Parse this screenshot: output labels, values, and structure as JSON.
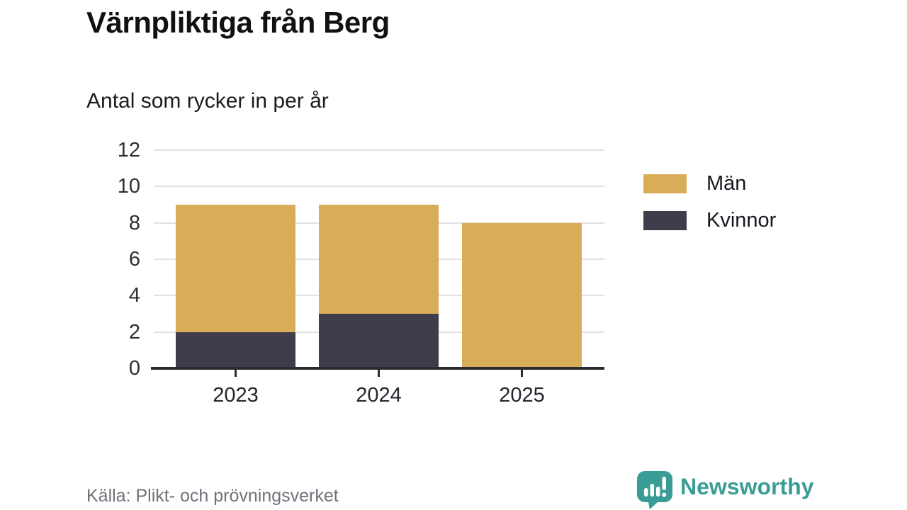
{
  "title": "Värnpliktiga från Berg",
  "subtitle": "Antal som rycker in per år",
  "source": "Källa: Plikt- och prövningsverket",
  "branding": {
    "name": "Newsworthy",
    "icon": "newsworthy-speech-bubble-chart-icon",
    "color": "#3A9D95"
  },
  "chart_data": {
    "type": "bar",
    "stacked": true,
    "title": "Värnpliktiga från Berg",
    "subtitle": "Antal som rycker in per år",
    "categories": [
      "2023",
      "2024",
      "2025"
    ],
    "series": [
      {
        "name": "Män",
        "color": "#D9AC57",
        "values": [
          7,
          6,
          8
        ]
      },
      {
        "name": "Kvinnor",
        "color": "#3F3D4C",
        "values": [
          2,
          3,
          0
        ]
      }
    ],
    "stack_totals": [
      9,
      9,
      8
    ],
    "ylim": [
      0,
      12
    ],
    "yticks": [
      0,
      2,
      4,
      6,
      8,
      10,
      12
    ],
    "xlabel": "",
    "ylabel": "",
    "grid": "horizontal",
    "gridline_color": "#E2E2E2",
    "axis_color": "#2B2B31",
    "legend_position": "right"
  }
}
